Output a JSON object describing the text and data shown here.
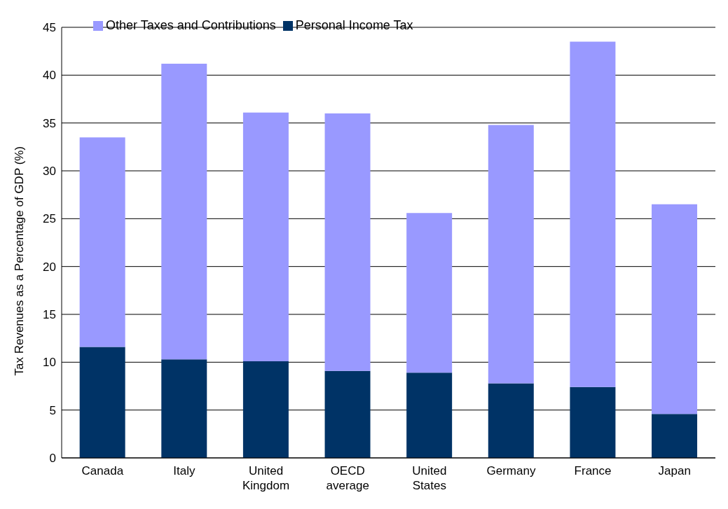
{
  "chart_data": {
    "type": "bar",
    "stacked": true,
    "ylabel": "Tax Revenues as a Percentage of GDP (%)",
    "categories": [
      "Canada",
      "Italy",
      "United Kingdom",
      "OECD average",
      "United States",
      "Germany",
      "France",
      "Japan"
    ],
    "series": [
      {
        "name": "Personal Income Tax",
        "color": "#003366",
        "values": [
          11.6,
          10.3,
          10.1,
          9.1,
          8.9,
          7.8,
          7.4,
          4.6
        ]
      },
      {
        "name": "Other Taxes and Contributions",
        "color": "#9999ff",
        "values": [
          21.9,
          30.9,
          26.0,
          26.9,
          16.7,
          27.0,
          36.1,
          21.9
        ]
      }
    ],
    "ylim": [
      0,
      45
    ],
    "yticks": [
      0,
      5,
      10,
      15,
      20,
      25,
      30,
      35,
      40,
      45
    ],
    "grid": "y",
    "legend": "top left"
  }
}
